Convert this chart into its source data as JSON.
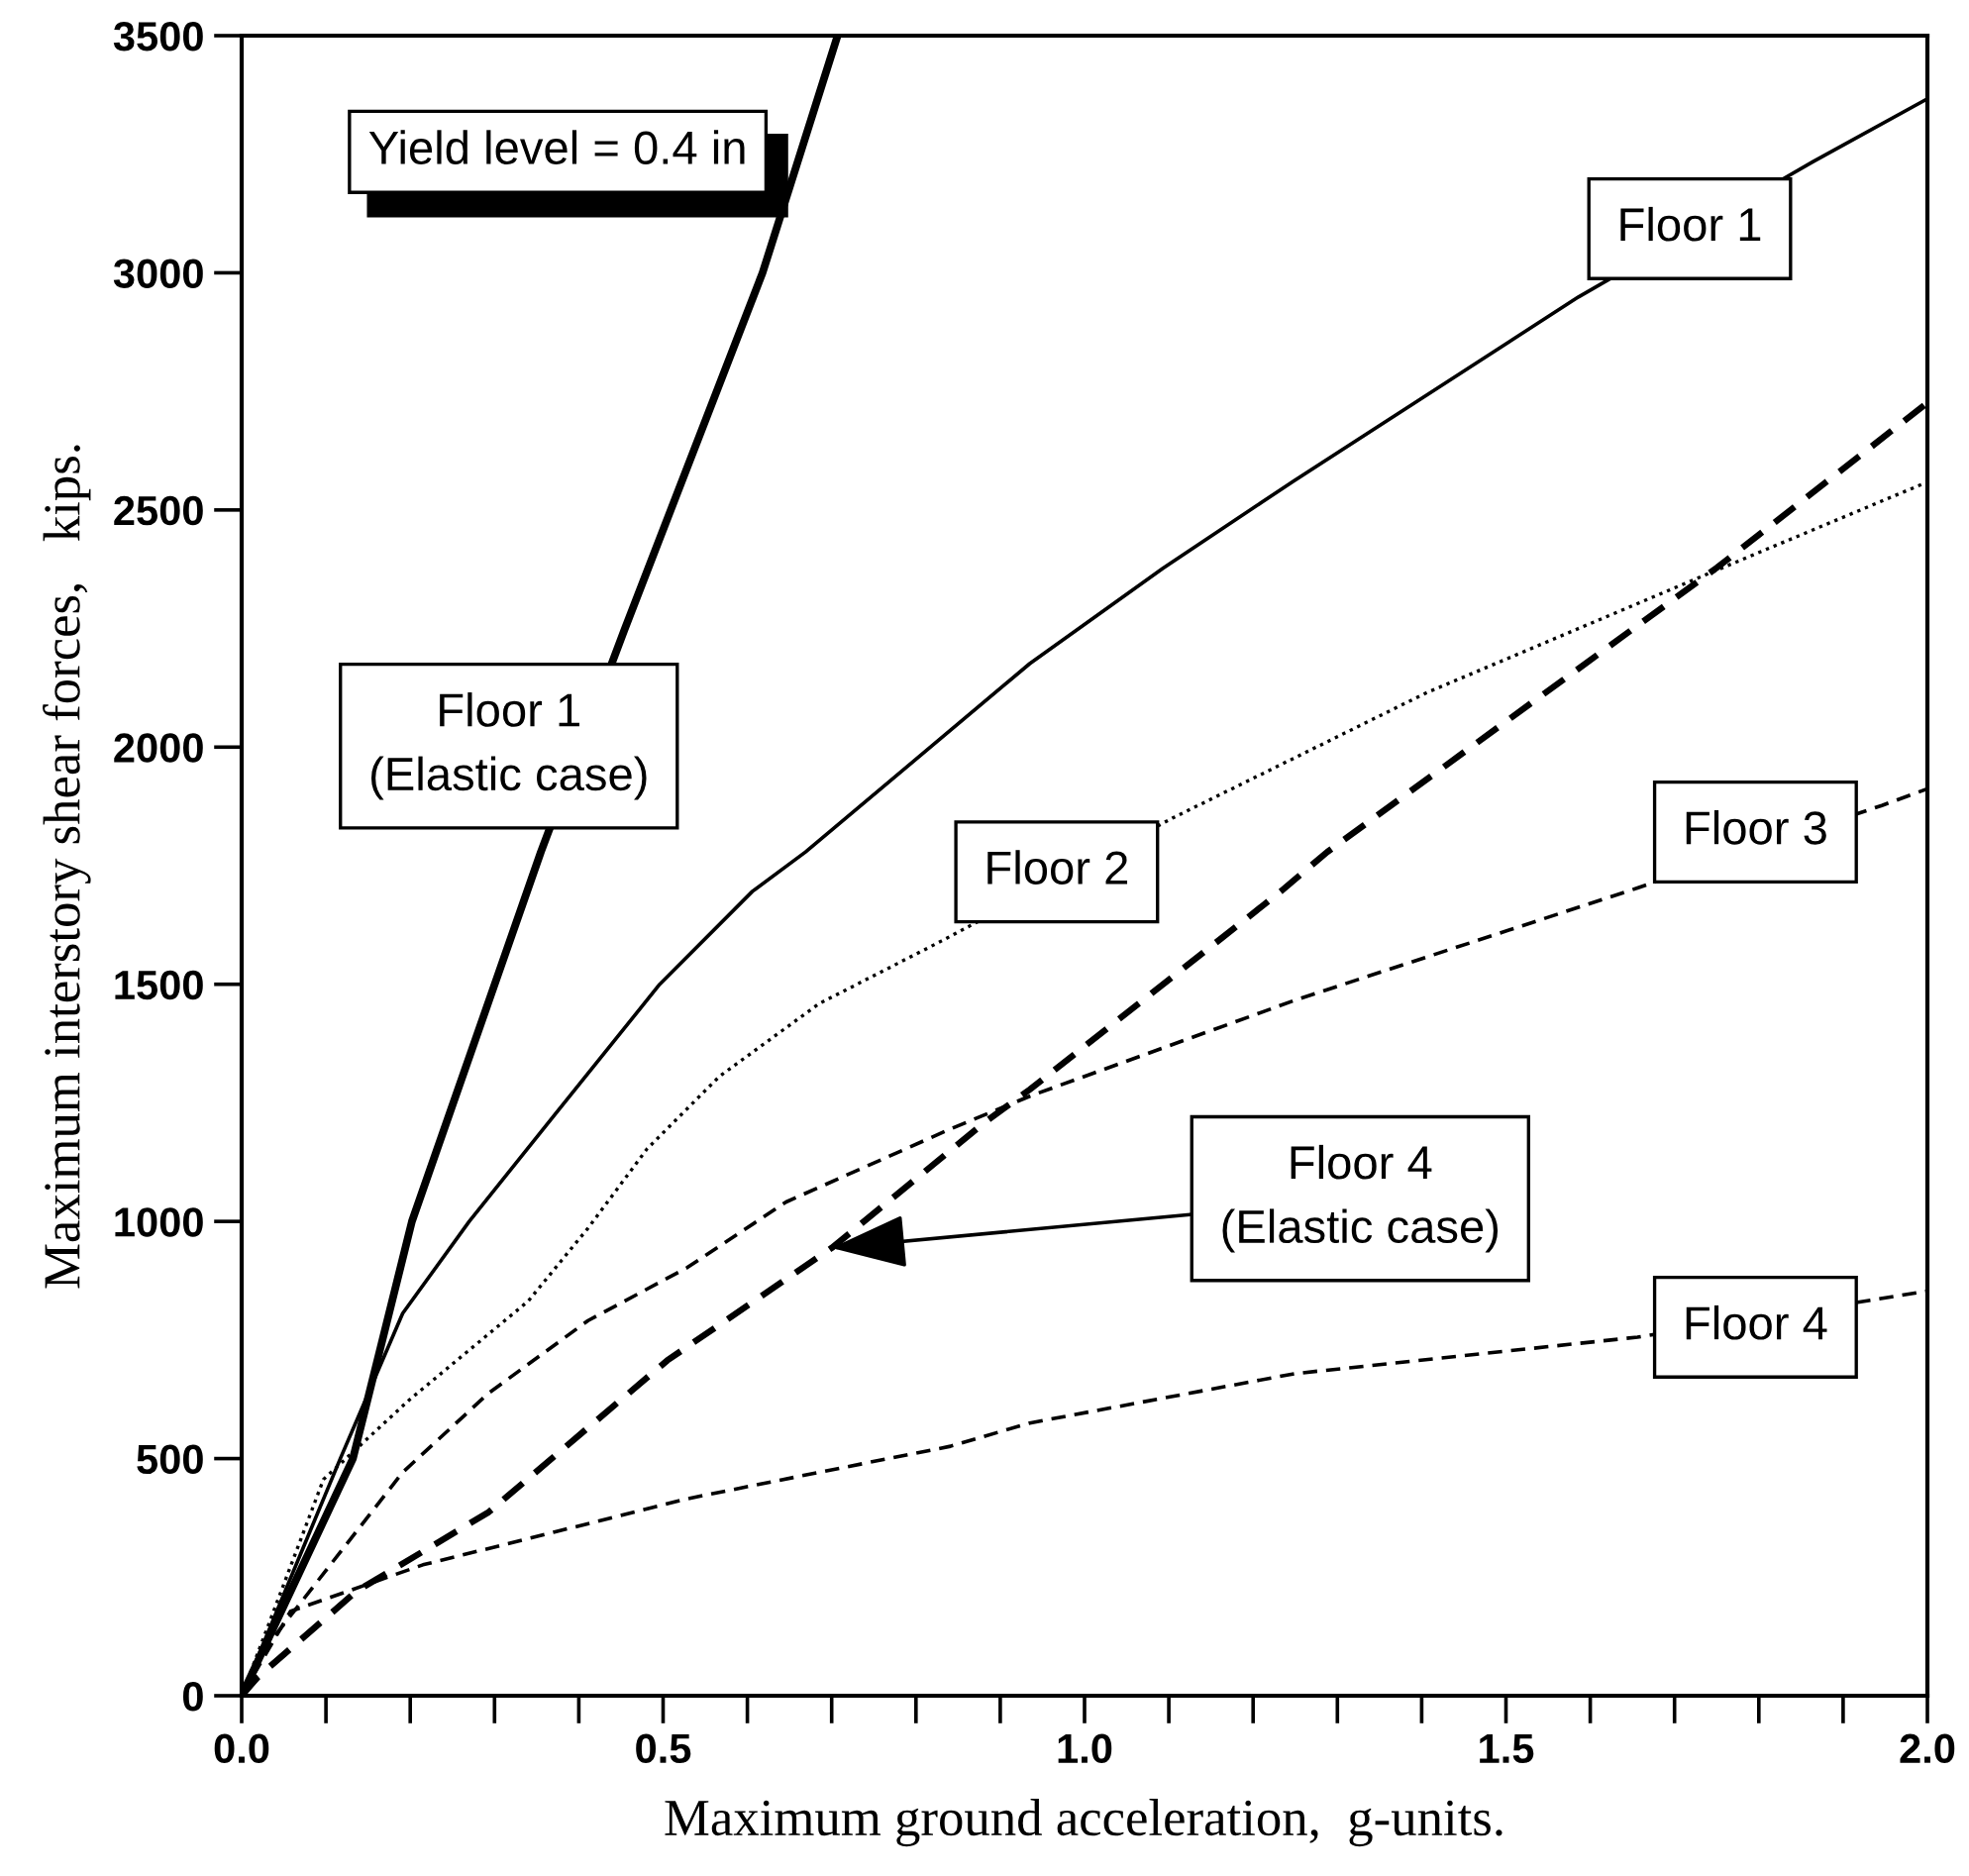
{
  "chart_data": {
    "type": "line",
    "xlabel": "Maximum ground acceleration,  g-units.",
    "ylabel": "Maximum interstory shear forces,   kips.",
    "xlim": [
      0,
      2
    ],
    "ylim": [
      0,
      3500
    ],
    "xticks": [
      {
        "value": 0,
        "label": "0.0"
      },
      {
        "value": 0.5,
        "label": "0.5"
      },
      {
        "value": 1,
        "label": "1.0"
      },
      {
        "value": 1.5,
        "label": "1.5"
      },
      {
        "value": 2,
        "label": "2.0"
      }
    ],
    "yticks": [
      0,
      500,
      1000,
      1500,
      2000,
      2500,
      3000,
      3500
    ],
    "grid": false,
    "legend": false,
    "marker": "none",
    "annotations": [
      "Yield level = 0.4 in"
    ],
    "series": [
      {
        "name": "Floor 1\n(Elastic case)",
        "color": "#000000",
        "line_style": "solid",
        "x": [
          0,
          0.132,
          0.202,
          0.355,
          0.454,
          0.618,
          0.707
        ],
        "values": [
          0,
          500,
          1000,
          1779,
          2247,
          3000,
          3500
        ]
      },
      {
        "name": "Floor 1",
        "color": "#000000",
        "line_style": "solid",
        "x": [
          0,
          0.117,
          0.191,
          0.27,
          0.371,
          0.496,
          0.606,
          0.669,
          0.935,
          1.093,
          1.248,
          1.586,
          1.864,
          2.0
        ],
        "values": [
          0,
          500,
          806,
          1000,
          1224,
          1500,
          1696,
          1779,
          2176,
          2377,
          2561,
          2949,
          3234,
          3367
        ]
      },
      {
        "name": "Floor 2",
        "color": "#000000",
        "line_style": "dotted",
        "x": [
          0,
          0.097,
          0.199,
          0.34,
          0.411,
          0.481,
          0.567,
          0.685,
          0.83,
          1.104,
          1.405,
          1.719,
          2.0
        ],
        "values": [
          0,
          456,
          624,
          832,
          986,
          1153,
          1306,
          1459,
          1591,
          1850,
          2114,
          2350,
          2559
        ]
      },
      {
        "name": "Floor 3",
        "color": "#000000",
        "line_style": "dashed",
        "x": [
          0,
          0.019,
          0.191,
          0.293,
          0.411,
          0.528,
          0.646,
          0.841,
          0.935,
          1.249,
          1.656,
          1.946,
          2.0
        ],
        "values": [
          0,
          80,
          471,
          638,
          791,
          902,
          1041,
          1195,
          1264,
          1466,
          1703,
          1877,
          1912
        ]
      },
      {
        "name": "Floor 4\n(Elastic case)",
        "color": "#000000",
        "line_style": "dashed",
        "x": [
          0,
          0.019,
          0.136,
          0.293,
          0.505,
          0.7,
          0.881,
          0.935,
          1.233,
          1.288,
          1.75,
          2.0
        ],
        "values": [
          0,
          39,
          220,
          387,
          707,
          944,
          1208,
          1278,
          1696,
          1779,
          2378,
          2726
        ]
      },
      {
        "name": "Floor 4",
        "color": "#000000",
        "line_style": "dashed",
        "x": [
          0,
          0.058,
          0.215,
          0.371,
          0.528,
          0.685,
          0.841,
          0.935,
          1.249,
          1.656,
          2.0
        ],
        "values": [
          0,
          178,
          276,
          345,
          415,
          471,
          526,
          575,
          679,
          756,
          853
        ]
      }
    ]
  }
}
